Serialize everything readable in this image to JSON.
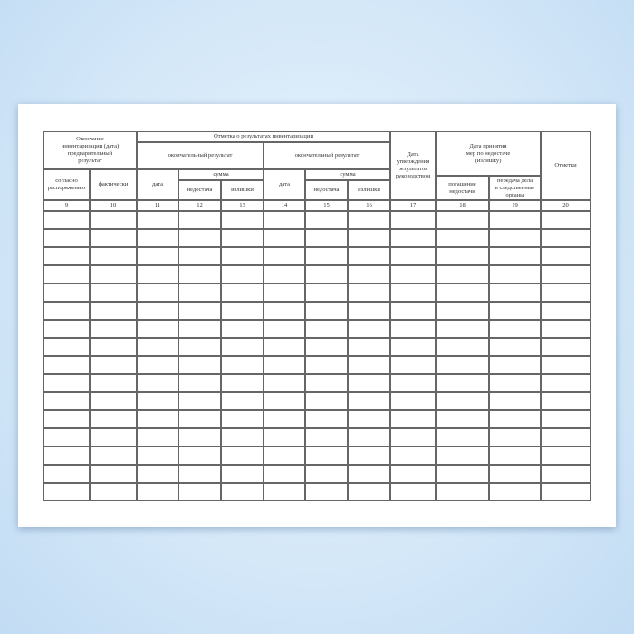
{
  "header": {
    "end_inventory": "Окончание\nинвентаризации (дата)\nпредварительный\nрезультат",
    "per_order": "согласно\nраспоряжению",
    "actual": "фактически",
    "result_mark": "Отметка о результатах инвентаризации",
    "final_result_1": "окончательный результат",
    "final_result_2": "окончательный результат",
    "date_1": "дата",
    "sum_1": "сумма",
    "shortage_1": "недостача",
    "surplus_1": "излишки",
    "date_2": "дата",
    "sum_2": "сумма",
    "shortage_2": "недостача",
    "surplus_2": "излишки",
    "approval_date": "Дата\nутверждения\nрезультатов\nруководством",
    "measures_date": "Дата принятия\nмер по недостаче\n(излишку)",
    "shortage_repayment": "погашение\nнедостачи",
    "case_transfer": "передача дела\nв следственные\nорганы",
    "notes": "Отметки"
  },
  "column_numbers": [
    "9",
    "10",
    "11",
    "12",
    "13",
    "14",
    "15",
    "16",
    "17",
    "18",
    "19",
    "20"
  ],
  "data_rows": 16
}
